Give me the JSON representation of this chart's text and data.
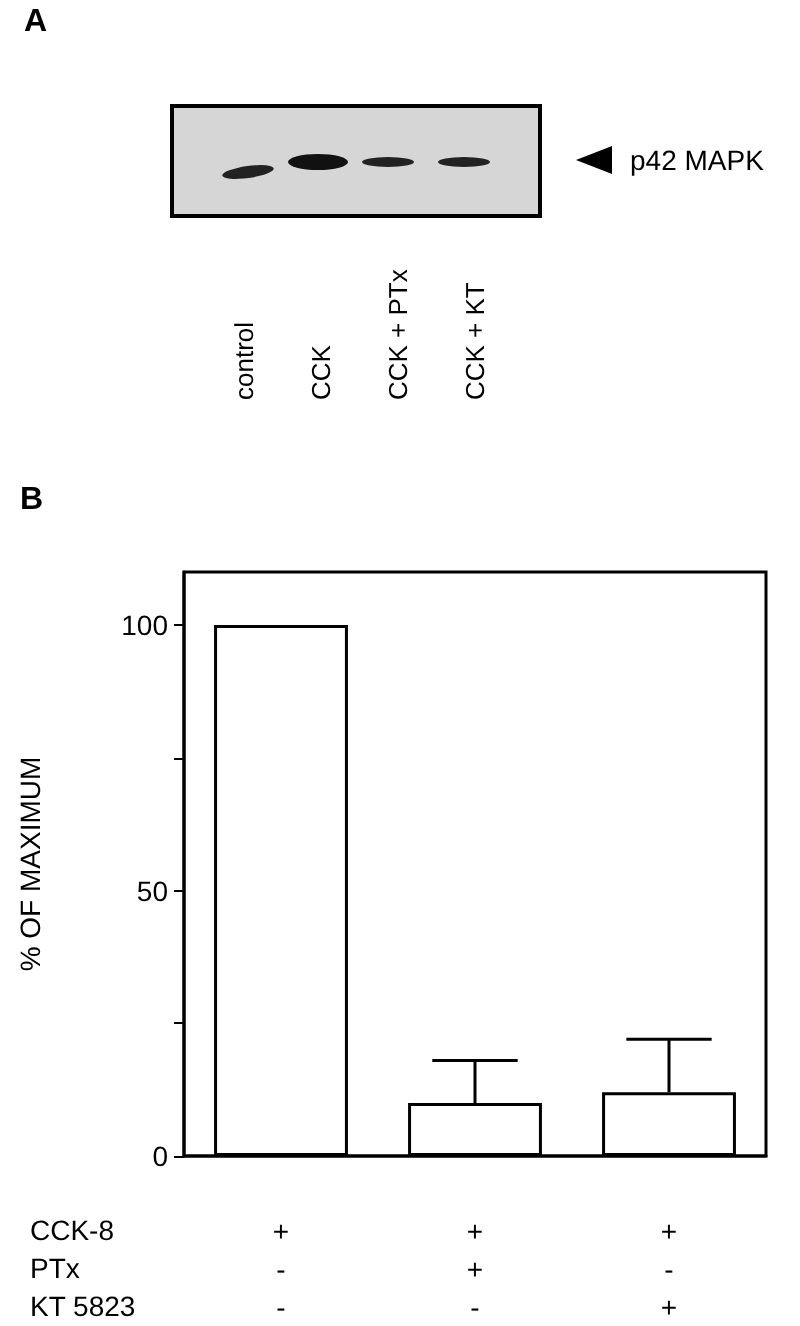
{
  "chart_data": [
    {
      "type": "other",
      "title": "A",
      "annotations": [
        "p42 MAPK",
        "control",
        "CCK",
        "CCK + PTx",
        "CCK + KT"
      ]
    },
    {
      "type": "bar",
      "title": "B",
      "categories": [
        "+\n-\n-",
        "+\n+\n-",
        "+\n-\n+"
      ],
      "values": [
        100,
        10,
        12
      ],
      "errors": [
        null,
        [
          10,
          18
        ],
        [
          12,
          22
        ]
      ],
      "color": "#ffffff",
      "ylabel": "% OF MAXIMUM",
      "ylim": [
        0,
        110
      ],
      "yticks": [
        0,
        {
          "value": 25,
          "label": null
        },
        50,
        {
          "value": 75,
          "label": null
        },
        100
      ],
      "annotations": [
        "CCK-8",
        "PTx",
        "KT 5823"
      ]
    }
  ]
}
